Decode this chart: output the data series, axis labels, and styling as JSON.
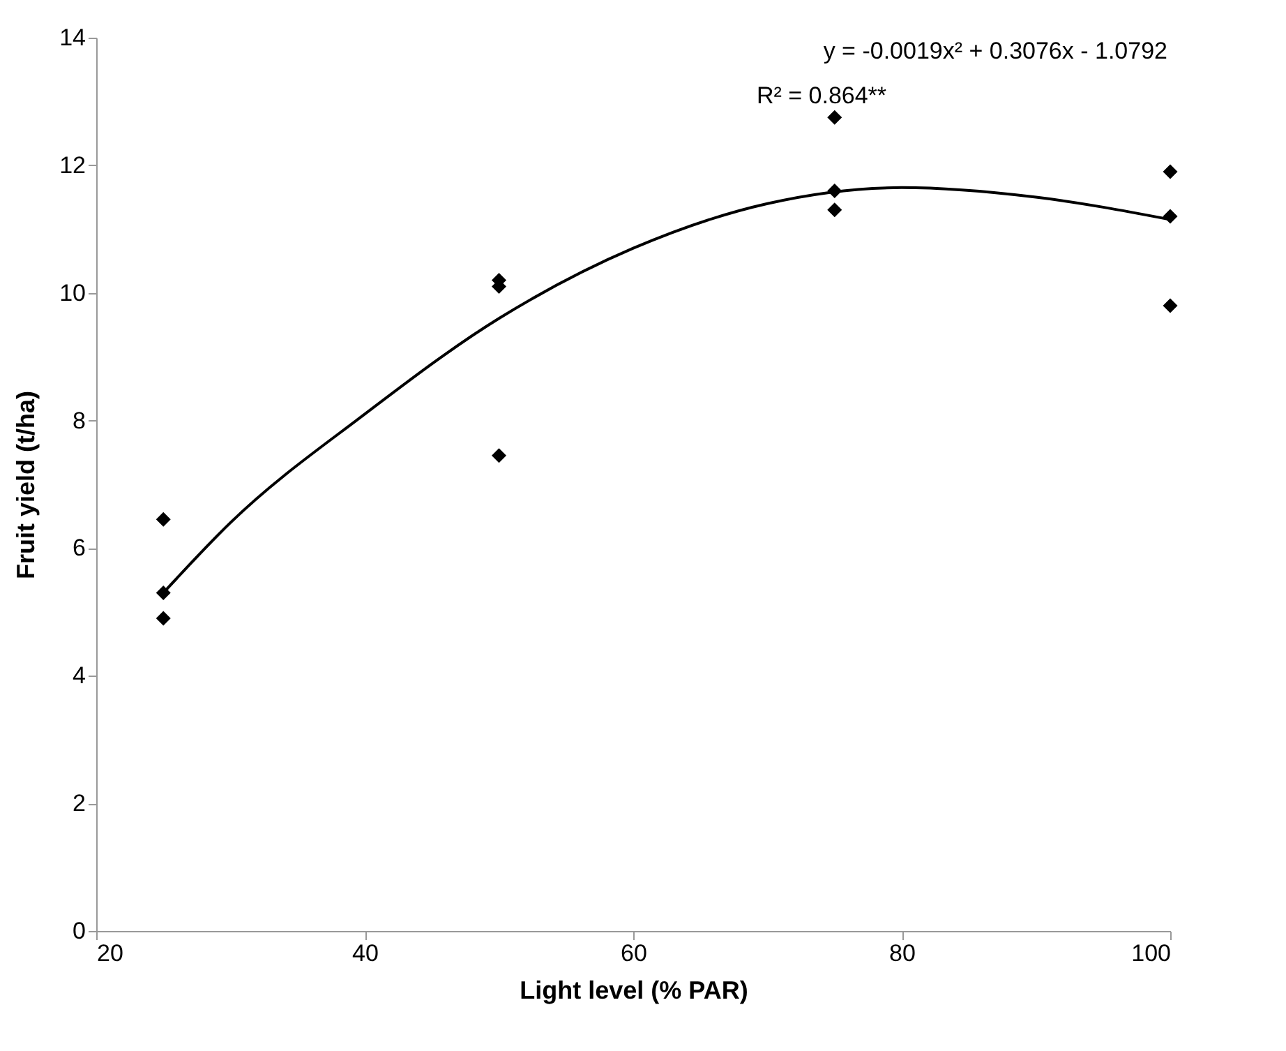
{
  "chart_data": {
    "type": "scatter",
    "xlabel": "Light level (% PAR)",
    "ylabel": "Fruit yield (t/ha)",
    "annotations": [
      "y = -0.0019x² + 0.3076x - 1.0792",
      "R² = 0.864**"
    ],
    "xlim": [
      20,
      100
    ],
    "xticks": [
      20,
      40,
      60,
      80,
      100
    ],
    "ylim": [
      0,
      14
    ],
    "yticks": [
      0,
      2,
      4,
      6,
      8,
      10,
      12,
      14
    ],
    "grid": false,
    "series": [
      {
        "color": "#000000",
        "marker": "diamond",
        "x": [
          25,
          25,
          25,
          50,
          50,
          50,
          75,
          75,
          75,
          100,
          100,
          100
        ],
        "values": [
          6.45,
          5.3,
          4.9,
          10.2,
          10.1,
          7.45,
          12.75,
          11.6,
          11.3,
          11.9,
          11.2,
          9.8
        ]
      },
      {
        "type": "line",
        "color": "#000000",
        "line_style": "solid",
        "x": [
          25,
          30,
          40,
          50,
          60,
          70,
          80,
          90,
          100
        ],
        "values": [
          5.3,
          6.4,
          8.1,
          9.6,
          10.7,
          11.4,
          11.65,
          11.5,
          11.15
        ]
      }
    ]
  }
}
